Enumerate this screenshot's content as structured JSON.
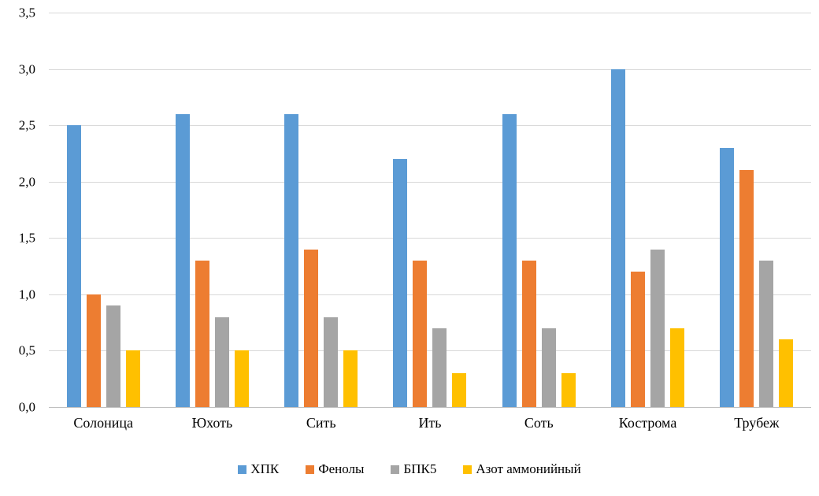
{
  "chart_data": {
    "type": "bar",
    "title": "",
    "xlabel": "",
    "ylabel": "",
    "categories": [
      "Солоница",
      "Юхоть",
      "Сить",
      "Ить",
      "Соть",
      "Кострома",
      "Трубеж"
    ],
    "series": [
      {
        "name": "ХПК",
        "color": "#5b9bd5",
        "values": [
          2.5,
          2.6,
          2.6,
          2.2,
          2.6,
          3.0,
          2.3
        ]
      },
      {
        "name": "Фенолы",
        "color": "#ed7d31",
        "values": [
          1.0,
          1.3,
          1.4,
          1.3,
          1.3,
          1.2,
          2.1
        ]
      },
      {
        "name": "БПК5",
        "color": "#a5a5a5",
        "values": [
          0.9,
          0.8,
          0.8,
          0.7,
          0.7,
          1.4,
          1.3
        ]
      },
      {
        "name": "Азот аммонийный",
        "color": "#ffc000",
        "values": [
          0.5,
          0.5,
          0.5,
          0.3,
          0.3,
          0.7,
          0.6
        ]
      }
    ],
    "ylim": [
      0,
      3.5
    ],
    "ytick_step": 0.5,
    "ytick_labels": [
      "0,0",
      "0,5",
      "1,0",
      "1,5",
      "2,0",
      "2,5",
      "3,0",
      "3,5"
    ],
    "grid": true,
    "gridline_color": "#d9d9d9",
    "axis_line_color": "#bfbfbf",
    "legend_position": "bottom"
  }
}
